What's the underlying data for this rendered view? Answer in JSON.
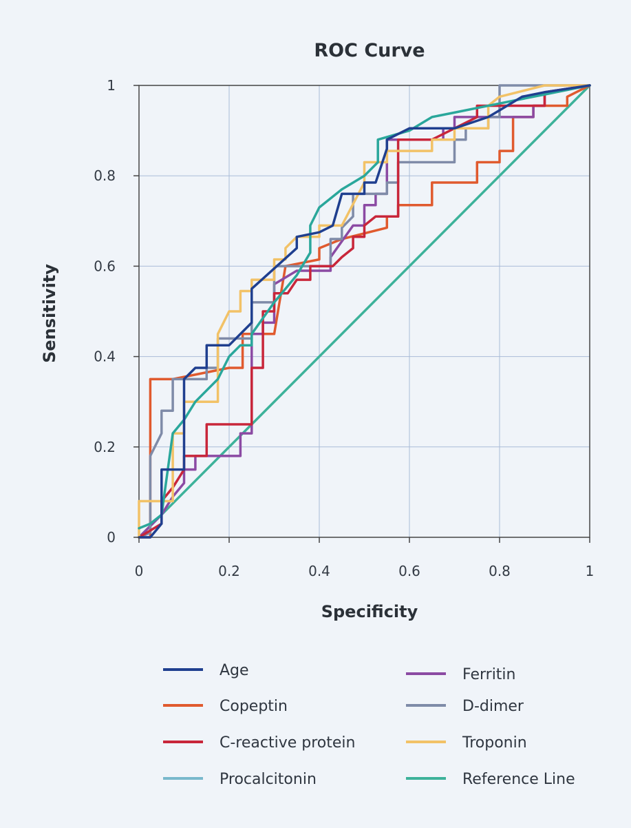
{
  "chart_data": {
    "type": "line",
    "title": "ROC Curve",
    "xlabel": "Specificity",
    "ylabel": "Sensitivity",
    "xlim": [
      0,
      1
    ],
    "ylim": [
      0,
      1
    ],
    "xticks": [
      "0",
      "0.2",
      "0.4",
      "0.6",
      "0.8",
      "1"
    ],
    "yticks": [
      "0",
      "0.2",
      "0.4",
      "0.6",
      "0.8",
      "1"
    ],
    "grid": true,
    "legend_position": "bottom, two columns",
    "series": [
      {
        "name": "Age",
        "color": "#1f3f8f",
        "points": [
          [
            0,
            0
          ],
          [
            0.025,
            0
          ],
          [
            0.05,
            0.03
          ],
          [
            0.05,
            0.15
          ],
          [
            0.1,
            0.15
          ],
          [
            0.1,
            0.35
          ],
          [
            0.125,
            0.375
          ],
          [
            0.15,
            0.375
          ],
          [
            0.15,
            0.425
          ],
          [
            0.2,
            0.425
          ],
          [
            0.25,
            0.475
          ],
          [
            0.25,
            0.55
          ],
          [
            0.35,
            0.64
          ],
          [
            0.35,
            0.665
          ],
          [
            0.4,
            0.675
          ],
          [
            0.43,
            0.69
          ],
          [
            0.45,
            0.76
          ],
          [
            0.5,
            0.76
          ],
          [
            0.5,
            0.785
          ],
          [
            0.525,
            0.785
          ],
          [
            0.55,
            0.86
          ],
          [
            0.55,
            0.88
          ],
          [
            0.6,
            0.905
          ],
          [
            0.7,
            0.905
          ],
          [
            0.775,
            0.93
          ],
          [
            0.8,
            0.945
          ],
          [
            0.85,
            0.975
          ],
          [
            0.9,
            0.985
          ],
          [
            1,
            1
          ]
        ]
      },
      {
        "name": "Copeptin",
        "color": "#e05a2e",
        "points": [
          [
            0,
            0
          ],
          [
            0.025,
            0
          ],
          [
            0.025,
            0.35
          ],
          [
            0.075,
            0.35
          ],
          [
            0.075,
            0.35
          ],
          [
            0.2,
            0.375
          ],
          [
            0.23,
            0.375
          ],
          [
            0.23,
            0.45
          ],
          [
            0.3,
            0.45
          ],
          [
            0.325,
            0.6
          ],
          [
            0.4,
            0.615
          ],
          [
            0.4,
            0.64
          ],
          [
            0.45,
            0.66
          ],
          [
            0.55,
            0.685
          ],
          [
            0.55,
            0.71
          ],
          [
            0.575,
            0.71
          ],
          [
            0.575,
            0.735
          ],
          [
            0.65,
            0.735
          ],
          [
            0.65,
            0.785
          ],
          [
            0.75,
            0.785
          ],
          [
            0.75,
            0.83
          ],
          [
            0.8,
            0.83
          ],
          [
            0.8,
            0.855
          ],
          [
            0.83,
            0.855
          ],
          [
            0.83,
            0.93
          ],
          [
            0.875,
            0.93
          ],
          [
            0.875,
            0.955
          ],
          [
            0.95,
            0.955
          ],
          [
            0.95,
            0.975
          ],
          [
            1,
            1
          ]
        ]
      },
      {
        "name": "C-reactive protein",
        "color": "#c8263a",
        "points": [
          [
            0,
            0
          ],
          [
            0.05,
            0.03
          ],
          [
            0.05,
            0.08
          ],
          [
            0.075,
            0.11
          ],
          [
            0.1,
            0.15
          ],
          [
            0.1,
            0.18
          ],
          [
            0.15,
            0.18
          ],
          [
            0.15,
            0.25
          ],
          [
            0.25,
            0.25
          ],
          [
            0.25,
            0.375
          ],
          [
            0.275,
            0.375
          ],
          [
            0.275,
            0.5
          ],
          [
            0.3,
            0.5
          ],
          [
            0.3,
            0.54
          ],
          [
            0.33,
            0.54
          ],
          [
            0.35,
            0.57
          ],
          [
            0.38,
            0.57
          ],
          [
            0.38,
            0.6
          ],
          [
            0.43,
            0.6
          ],
          [
            0.45,
            0.62
          ],
          [
            0.475,
            0.64
          ],
          [
            0.475,
            0.665
          ],
          [
            0.5,
            0.665
          ],
          [
            0.5,
            0.69
          ],
          [
            0.525,
            0.71
          ],
          [
            0.575,
            0.71
          ],
          [
            0.575,
            0.88
          ],
          [
            0.65,
            0.88
          ],
          [
            0.7,
            0.905
          ],
          [
            0.75,
            0.93
          ],
          [
            0.75,
            0.955
          ],
          [
            0.9,
            0.955
          ],
          [
            0.9,
            0.985
          ],
          [
            1,
            1
          ]
        ]
      },
      {
        "name": "Procalcitonin",
        "color": "#79b8cc",
        "points": [
          [
            0,
            0
          ],
          [
            0.05,
            0.03
          ],
          [
            0.075,
            0.2
          ],
          [
            0.15,
            0.3
          ],
          [
            0.2,
            0.4
          ],
          [
            0.25,
            0.45
          ],
          [
            0.3,
            0.55
          ],
          [
            0.35,
            0.6
          ],
          [
            0.4,
            0.65
          ],
          [
            0.45,
            0.7
          ],
          [
            0.5,
            0.75
          ],
          [
            0.6,
            0.85
          ],
          [
            0.7,
            0.9
          ],
          [
            0.8,
            0.95
          ],
          [
            1,
            1
          ]
        ]
      },
      {
        "name": "Ferritin",
        "color": "#8b4aa3",
        "points": [
          [
            0,
            0
          ],
          [
            0.05,
            0.05
          ],
          [
            0.075,
            0.09
          ],
          [
            0.1,
            0.12
          ],
          [
            0.1,
            0.15
          ],
          [
            0.125,
            0.15
          ],
          [
            0.125,
            0.18
          ],
          [
            0.225,
            0.18
          ],
          [
            0.225,
            0.23
          ],
          [
            0.25,
            0.23
          ],
          [
            0.25,
            0.45
          ],
          [
            0.275,
            0.45
          ],
          [
            0.275,
            0.475
          ],
          [
            0.3,
            0.475
          ],
          [
            0.3,
            0.56
          ],
          [
            0.35,
            0.59
          ],
          [
            0.425,
            0.59
          ],
          [
            0.425,
            0.62
          ],
          [
            0.475,
            0.69
          ],
          [
            0.5,
            0.69
          ],
          [
            0.5,
            0.735
          ],
          [
            0.525,
            0.735
          ],
          [
            0.525,
            0.76
          ],
          [
            0.55,
            0.76
          ],
          [
            0.55,
            0.88
          ],
          [
            0.625,
            0.88
          ],
          [
            0.675,
            0.88
          ],
          [
            0.675,
            0.905
          ],
          [
            0.7,
            0.905
          ],
          [
            0.7,
            0.93
          ],
          [
            0.875,
            0.93
          ],
          [
            0.875,
            0.955
          ],
          [
            0.9,
            0.955
          ],
          [
            0.9,
            0.985
          ],
          [
            1,
            1
          ]
        ]
      },
      {
        "name": "D-dimer",
        "color": "#7f8ba8",
        "points": [
          [
            0,
            0
          ],
          [
            0.025,
            0.01
          ],
          [
            0.025,
            0.18
          ],
          [
            0.05,
            0.23
          ],
          [
            0.05,
            0.28
          ],
          [
            0.075,
            0.28
          ],
          [
            0.075,
            0.35
          ],
          [
            0.15,
            0.35
          ],
          [
            0.15,
            0.375
          ],
          [
            0.175,
            0.375
          ],
          [
            0.175,
            0.44
          ],
          [
            0.25,
            0.44
          ],
          [
            0.25,
            0.52
          ],
          [
            0.3,
            0.52
          ],
          [
            0.3,
            0.6
          ],
          [
            0.425,
            0.6
          ],
          [
            0.425,
            0.66
          ],
          [
            0.45,
            0.66
          ],
          [
            0.45,
            0.685
          ],
          [
            0.475,
            0.71
          ],
          [
            0.475,
            0.76
          ],
          [
            0.55,
            0.76
          ],
          [
            0.55,
            0.785
          ],
          [
            0.575,
            0.785
          ],
          [
            0.575,
            0.83
          ],
          [
            0.7,
            0.83
          ],
          [
            0.7,
            0.88
          ],
          [
            0.725,
            0.88
          ],
          [
            0.725,
            0.905
          ],
          [
            0.775,
            0.905
          ],
          [
            0.775,
            0.93
          ],
          [
            0.8,
            0.93
          ],
          [
            0.8,
            1
          ],
          [
            1,
            1
          ]
        ]
      },
      {
        "name": "Troponin",
        "color": "#f2c267",
        "points": [
          [
            0,
            0
          ],
          [
            0,
            0.08
          ],
          [
            0.075,
            0.08
          ],
          [
            0.075,
            0.23
          ],
          [
            0.1,
            0.23
          ],
          [
            0.1,
            0.3
          ],
          [
            0.175,
            0.3
          ],
          [
            0.175,
            0.45
          ],
          [
            0.2,
            0.5
          ],
          [
            0.225,
            0.5
          ],
          [
            0.225,
            0.545
          ],
          [
            0.25,
            0.545
          ],
          [
            0.25,
            0.57
          ],
          [
            0.3,
            0.57
          ],
          [
            0.3,
            0.615
          ],
          [
            0.325,
            0.615
          ],
          [
            0.325,
            0.64
          ],
          [
            0.35,
            0.665
          ],
          [
            0.4,
            0.665
          ],
          [
            0.4,
            0.69
          ],
          [
            0.45,
            0.69
          ],
          [
            0.5,
            0.785
          ],
          [
            0.5,
            0.83
          ],
          [
            0.55,
            0.83
          ],
          [
            0.55,
            0.855
          ],
          [
            0.65,
            0.855
          ],
          [
            0.65,
            0.88
          ],
          [
            0.7,
            0.88
          ],
          [
            0.7,
            0.905
          ],
          [
            0.775,
            0.905
          ],
          [
            0.775,
            0.955
          ],
          [
            0.8,
            0.975
          ],
          [
            0.9,
            1
          ],
          [
            1,
            1
          ]
        ]
      },
      {
        "name": "Reference Line",
        "color": "#3db29a",
        "points": [
          [
            0,
            0
          ],
          [
            1,
            1
          ]
        ]
      },
      {
        "name": "Procalcitonin (smooth)",
        "color": "#2aa79b",
        "legend": false,
        "points": [
          [
            0,
            0.02
          ],
          [
            0.025,
            0.03
          ],
          [
            0.05,
            0.05
          ],
          [
            0.075,
            0.23
          ],
          [
            0.1,
            0.26
          ],
          [
            0.125,
            0.3
          ],
          [
            0.175,
            0.35
          ],
          [
            0.2,
            0.4
          ],
          [
            0.225,
            0.425
          ],
          [
            0.25,
            0.425
          ],
          [
            0.25,
            0.45
          ],
          [
            0.3,
            0.52
          ],
          [
            0.35,
            0.58
          ],
          [
            0.38,
            0.63
          ],
          [
            0.38,
            0.69
          ],
          [
            0.4,
            0.73
          ],
          [
            0.45,
            0.77
          ],
          [
            0.5,
            0.8
          ],
          [
            0.53,
            0.83
          ],
          [
            0.53,
            0.88
          ],
          [
            0.6,
            0.9
          ],
          [
            0.65,
            0.93
          ],
          [
            0.7,
            0.94
          ],
          [
            0.8,
            0.96
          ],
          [
            0.9,
            0.98
          ],
          [
            1,
            1
          ]
        ]
      }
    ]
  }
}
